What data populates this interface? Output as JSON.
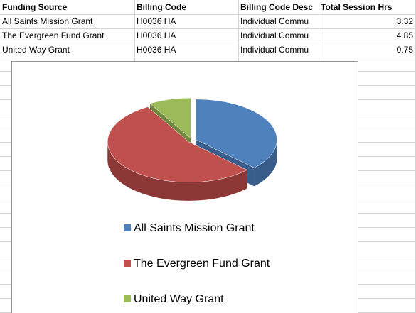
{
  "table": {
    "headers": [
      "Funding Source",
      "Billing Code",
      "Billing Code Desc",
      "Total Session Hrs"
    ],
    "rows": [
      [
        "All Saints Mission Grant",
        "H0036 HA",
        "Individual Commu",
        "3.32"
      ],
      [
        "The Evergreen Fund Grant",
        "H0036 HA",
        "Individual Commu",
        "4.85"
      ],
      [
        "United Way Grant",
        "H0036 HA",
        "Individual Commu",
        "0.75"
      ]
    ]
  },
  "chart_data": {
    "type": "pie",
    "categories": [
      "All Saints Mission Grant",
      "The Evergreen Fund Grant",
      "United Way Grant"
    ],
    "values": [
      3.32,
      4.85,
      0.75
    ],
    "colors": [
      "#4f81bd",
      "#c0504d",
      "#9bbb59"
    ],
    "side_colors": [
      "#385d8a",
      "#8c3836",
      "#71893f"
    ],
    "title": "",
    "legend_position": "bottom",
    "exploded": true,
    "three_d": true
  }
}
